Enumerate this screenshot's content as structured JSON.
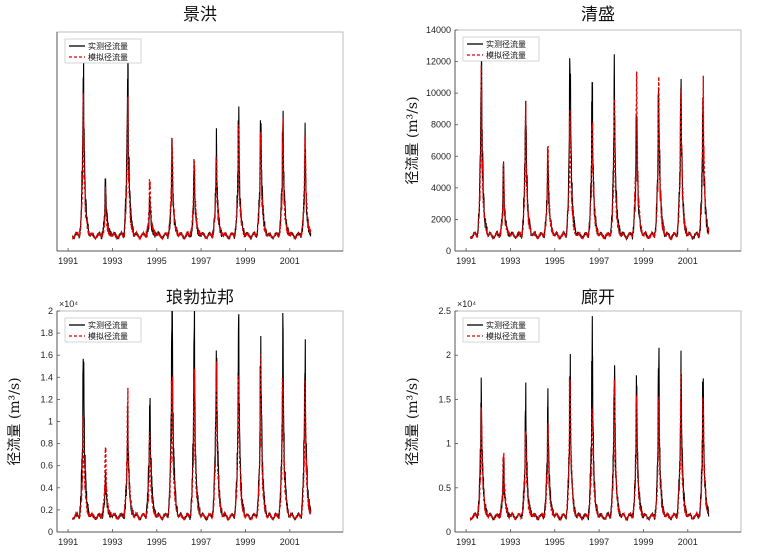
{
  "chart_data": [
    {
      "type": "line",
      "title": "景洪",
      "ylabel": "",
      "y_ticks": [],
      "exponent": "",
      "ylim": [
        0,
        6000
      ],
      "x_ticks": [
        "1991",
        "1993",
        "1995",
        "1997",
        "1999",
        "2001"
      ],
      "xlim": [
        1990.5,
        2003.4
      ],
      "x_range": [
        1991.2,
        2001.95
      ],
      "legend": "top-left",
      "series": [
        {
          "name": "实测径流量",
          "color": "#000000",
          "style": "solid",
          "peaks": [
            4900,
            2000,
            5050,
            1550,
            2750,
            2150,
            2850,
            3550,
            3850,
            3800,
            2900
          ]
        },
        {
          "name": "模拟径流量",
          "color": "#e00000",
          "style": "dashed",
          "peaks": [
            3800,
            1550,
            4000,
            2000,
            3100,
            2700,
            2850,
            3200,
            3300,
            3100,
            3200
          ]
        }
      ]
    },
    {
      "type": "line",
      "title": "清盛",
      "ylabel": "径流量 (m³/s)",
      "y_ticks": [
        "0",
        "2000",
        "4000",
        "6000",
        "8000",
        "10000",
        "12000",
        "14000"
      ],
      "exponent": "",
      "ylim": [
        0,
        14000
      ],
      "x_ticks": [
        "1991",
        "1993",
        "1995",
        "1997",
        "1999",
        "2001"
      ],
      "xlim": [
        1990.5,
        2003.4
      ],
      "x_range": [
        1991.2,
        2001.95
      ],
      "legend": "top-left",
      "series": [
        {
          "name": "实测径流量",
          "color": "#000000",
          "style": "solid",
          "peaks": [
            12300,
            5200,
            10100,
            6400,
            12200,
            9500,
            10900,
            9000,
            10300,
            10700,
            10300
          ]
        },
        {
          "name": "模拟径流量",
          "color": "#e00000",
          "style": "dashed",
          "peaks": [
            10300,
            5000,
            8300,
            6500,
            8800,
            8800,
            8400,
            10500,
            9900,
            10500,
            10200
          ]
        }
      ]
    },
    {
      "type": "line",
      "title": "琅勃拉邦",
      "ylabel": "径流量 (m³/s)",
      "y_ticks": [
        "0",
        "0.2",
        "0.4",
        "0.6",
        "0.8",
        "1",
        "1.2",
        "1.4",
        "1.6",
        "1.8",
        "2"
      ],
      "exponent": "×10⁴",
      "ylim": [
        0,
        20000
      ],
      "x_ticks": [
        "1991",
        "1993",
        "1995",
        "1997",
        "1999",
        "2001"
      ],
      "xlim": [
        1990.5,
        2003.4
      ],
      "x_range": [
        1991.2,
        2001.95
      ],
      "legend": "top-left",
      "series": [
        {
          "name": "实测径流量",
          "color": "#000000",
          "style": "solid",
          "peaks": [
            17000,
            5600,
            10700,
            13100,
            19300,
            18700,
            17500,
            17300,
            17000,
            16700,
            16500
          ]
        },
        {
          "name": "模拟径流量",
          "color": "#e00000",
          "style": "dashed",
          "peaks": [
            10500,
            7600,
            12000,
            9200,
            14800,
            13500,
            14400,
            14000,
            14100,
            14100,
            13500
          ]
        }
      ]
    },
    {
      "type": "line",
      "title": "廊开",
      "ylabel": "径流量 (m³/s)",
      "y_ticks": [
        "0",
        "0.5",
        "1",
        "1.5",
        "2",
        "2.5"
      ],
      "exponent": "×10⁴",
      "ylim": [
        0,
        25000
      ],
      "x_ticks": [
        "1991",
        "1993",
        "1995",
        "1997",
        "1999",
        "2001"
      ],
      "xlim": [
        1990.5,
        2003.4
      ],
      "x_range": [
        1991.2,
        2001.95
      ],
      "legend": "top-left",
      "series": [
        {
          "name": "实测径流量",
          "color": "#000000",
          "style": "solid",
          "peaks": [
            17000,
            8500,
            15000,
            15700,
            17700,
            20500,
            17500,
            16800,
            18600,
            18800,
            17500
          ]
        },
        {
          "name": "模拟径流量",
          "color": "#e00000",
          "style": "dashed",
          "peaks": [
            13800,
            9200,
            12500,
            12300,
            17800,
            15800,
            16200,
            14600,
            14000,
            15600,
            15800
          ]
        }
      ]
    }
  ]
}
